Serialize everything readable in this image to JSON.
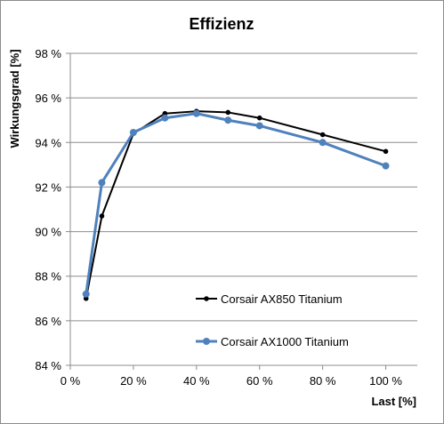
{
  "chart_data": {
    "type": "line",
    "title": "Effizienz",
    "xlabel": "Last [%]",
    "ylabel": "Wirkungsgrad [%]",
    "xlim": [
      0,
      110
    ],
    "ylim": [
      84,
      98
    ],
    "x_ticks": [
      "0 %",
      "20 %",
      "40 %",
      "60 %",
      "80 %",
      "100 %"
    ],
    "y_ticks": [
      "84 %",
      "86 %",
      "88 %",
      "90 %",
      "92 %",
      "94 %",
      "96 %",
      "98 %"
    ],
    "grid": "horizontal",
    "legend_position": "lower-center",
    "series": [
      {
        "name": "Corsair AX850 Titanium",
        "color": "#000000",
        "x": [
          5,
          10,
          20,
          30,
          40,
          50,
          60,
          80,
          100
        ],
        "y": [
          87.0,
          90.7,
          94.4,
          95.3,
          95.4,
          95.35,
          95.1,
          94.35,
          93.6
        ]
      },
      {
        "name": "Corsair AX1000 Titanium",
        "color": "#4f81bd",
        "x": [
          5,
          10,
          20,
          30,
          40,
          50,
          60,
          80,
          100
        ],
        "y": [
          87.2,
          92.2,
          94.45,
          95.1,
          95.3,
          95.0,
          94.75,
          94.0,
          92.95
        ]
      }
    ]
  }
}
